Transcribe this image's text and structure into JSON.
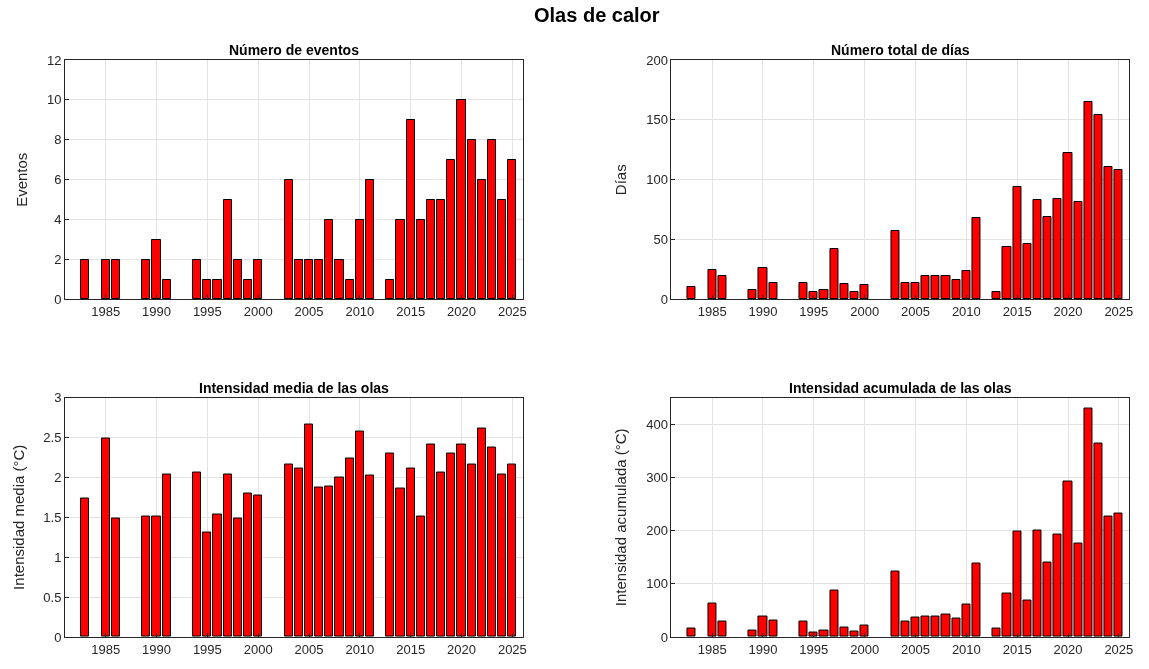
{
  "chart_data": [
    {
      "type": "bar",
      "title": "Número de eventos",
      "ylabel": "Eventos",
      "annotations": [
        "Olas de calor"
      ],
      "x": [
        1983,
        1985,
        1986,
        1989,
        1990,
        1991,
        1994,
        1995,
        1996,
        1997,
        1998,
        1999,
        2000,
        2003,
        2004,
        2005,
        2006,
        2007,
        2008,
        2009,
        2010,
        2011,
        2013,
        2014,
        2015,
        2016,
        2017,
        2018,
        2019,
        2020,
        2021,
        2022,
        2023,
        2024,
        2025
      ],
      "values": [
        2,
        2,
        2,
        2,
        3,
        1,
        2,
        1,
        1,
        5,
        2,
        1,
        2,
        6,
        2,
        2,
        2,
        4,
        2,
        1,
        4,
        6,
        1,
        4,
        9,
        4,
        5,
        5,
        7,
        10,
        8,
        6,
        8,
        5,
        7
      ],
      "color": "#ff0000",
      "xlim": [
        1981,
        2026
      ],
      "xticks": [
        1985,
        1990,
        1995,
        2000,
        2005,
        2010,
        2015,
        2020,
        2025
      ],
      "ylim": [
        0,
        12
      ],
      "yticks": [
        0,
        2,
        4,
        6,
        8,
        10,
        12
      ],
      "grid": true
    },
    {
      "type": "bar",
      "title": "Número total de días",
      "ylabel": "Días",
      "x": [
        1983,
        1985,
        1986,
        1989,
        1990,
        1991,
        1994,
        1995,
        1996,
        1997,
        1998,
        1999,
        2000,
        2003,
        2004,
        2005,
        2006,
        2007,
        2008,
        2009,
        2010,
        2011,
        2013,
        2014,
        2015,
        2016,
        2017,
        2018,
        2019,
        2020,
        2021,
        2022,
        2023,
        2024,
        2025
      ],
      "values": [
        10,
        25,
        20,
        8,
        26,
        14,
        14,
        6,
        8,
        42,
        13,
        6,
        12,
        57,
        14,
        14,
        20,
        20,
        20,
        16,
        24,
        68,
        6,
        44,
        94,
        46,
        83,
        69,
        84,
        122,
        81,
        165,
        154,
        111,
        108
      ],
      "color": "#ff0000",
      "xlim": [
        1981,
        2026
      ],
      "xticks": [
        1985,
        1990,
        1995,
        2000,
        2005,
        2010,
        2015,
        2020,
        2025
      ],
      "ylim": [
        0,
        200
      ],
      "yticks": [
        0,
        50,
        100,
        150,
        200
      ],
      "grid": true
    },
    {
      "type": "bar",
      "title": "Intensidad media de las olas",
      "ylabel": "Intensidad media (°C)",
      "x": [
        1983,
        1985,
        1986,
        1989,
        1990,
        1991,
        1994,
        1995,
        1996,
        1997,
        1998,
        1999,
        2000,
        2003,
        2004,
        2005,
        2006,
        2007,
        2008,
        2009,
        2010,
        2011,
        2013,
        2014,
        2015,
        2016,
        2017,
        2018,
        2019,
        2020,
        2021,
        2022,
        2023,
        2024,
        2025
      ],
      "values": [
        1.73,
        2.49,
        1.49,
        1.51,
        1.51,
        2.04,
        2.06,
        1.31,
        1.54,
        2.04,
        1.49,
        1.8,
        1.77,
        2.16,
        2.11,
        2.66,
        1.87,
        1.88,
        2.0,
        2.24,
        2.58,
        2.02,
        2.3,
        1.86,
        2.11,
        1.51,
        2.41,
        2.06,
        2.3,
        2.41,
        2.16,
        2.61,
        2.37,
        2.04,
        2.16
      ],
      "color": "#ff0000",
      "xlim": [
        1981,
        2026
      ],
      "xticks": [
        1985,
        1990,
        1995,
        2000,
        2005,
        2010,
        2015,
        2020,
        2025
      ],
      "ylim": [
        0,
        3
      ],
      "yticks": [
        0,
        0.5,
        1,
        1.5,
        2,
        2.5,
        3
      ],
      "grid": true
    },
    {
      "type": "bar",
      "title": "Intensidad acumulada de las olas",
      "ylabel": "Intensidad acumulada (°C)",
      "x": [
        1983,
        1985,
        1986,
        1989,
        1990,
        1991,
        1994,
        1995,
        1996,
        1997,
        1998,
        1999,
        2000,
        2003,
        2004,
        2005,
        2006,
        2007,
        2008,
        2009,
        2010,
        2011,
        2013,
        2014,
        2015,
        2016,
        2017,
        2018,
        2019,
        2020,
        2021,
        2022,
        2023,
        2024,
        2025
      ],
      "values": [
        16,
        62,
        29,
        12,
        39,
        30,
        29,
        9,
        13,
        87,
        18,
        11,
        21,
        123,
        29,
        36,
        38,
        38,
        42,
        35,
        61,
        138,
        15,
        81,
        198,
        68,
        200,
        140,
        193,
        293,
        176,
        430,
        363,
        227,
        232
      ],
      "color": "#ff0000",
      "xlim": [
        1981,
        2026
      ],
      "xticks": [
        1985,
        1990,
        1995,
        2000,
        2005,
        2010,
        2015,
        2020,
        2025
      ],
      "ylim": [
        0,
        450
      ],
      "yticks": [
        0,
        100,
        200,
        300,
        400
      ],
      "grid": true
    }
  ]
}
